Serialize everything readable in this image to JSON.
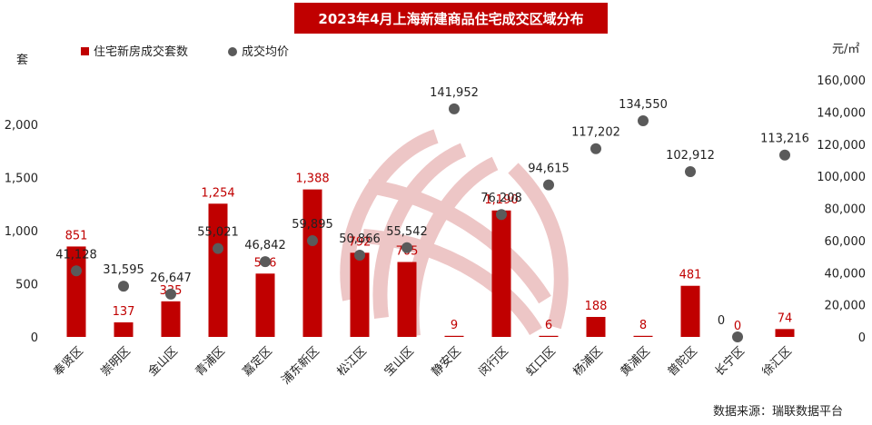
{
  "title": "2023年4月上海新建商品住宅成交区域分布",
  "source": "数据来源：瑞联数据平台",
  "colors": {
    "bar": "#c00000",
    "dot": "#5a5a5a",
    "title_bg": "#c00000",
    "watermark": "#e8b3b3"
  },
  "chart_data": {
    "type": "bar",
    "categories": [
      "奉贤区",
      "崇明区",
      "金山区",
      "青浦区",
      "嘉定区",
      "浦东新区",
      "松江区",
      "宝山区",
      "静安区",
      "闵行区",
      "虹口区",
      "杨浦区",
      "黄浦区",
      "普陀区",
      "长宁区",
      "徐汇区"
    ],
    "series": [
      {
        "name": "住宅新房成交套数",
        "type": "bar",
        "axis": "left",
        "values": [
          851,
          137,
          335,
          1254,
          596,
          1388,
          792,
          705,
          9,
          1190,
          6,
          188,
          8,
          481,
          0,
          74
        ],
        "labels": [
          "851",
          "137",
          "335",
          "1,254",
          "596",
          "1,388",
          "792",
          "705",
          "9",
          "1,190",
          "6",
          "188",
          "8",
          "481",
          "0",
          "74"
        ]
      },
      {
        "name": "成交均价",
        "type": "scatter",
        "axis": "right",
        "values": [
          41128,
          31595,
          26647,
          55021,
          46842,
          59895,
          50866,
          55542,
          141952,
          76208,
          94615,
          117202,
          134550,
          102912,
          0,
          113216
        ],
        "labels": [
          "41,128",
          "31,595",
          "26,647",
          "55,021",
          "46,842",
          "59,895",
          "50,866",
          "55,542",
          "141,952",
          "76,208",
          "94,615",
          "117,202",
          "134,550",
          "102,912",
          "0",
          "113,216"
        ]
      }
    ],
    "y_left": {
      "label": "套",
      "min": 0,
      "max": 2000,
      "ticks": [
        "0",
        "500",
        "1,000",
        "1,500",
        "2,000"
      ],
      "tick_values": [
        0,
        500,
        1000,
        1500,
        2000
      ]
    },
    "y_right": {
      "label": "元/㎡",
      "min": 0,
      "max": 160000,
      "ticks": [
        "0",
        "20,000",
        "40,000",
        "60,000",
        "80,000",
        "100,000",
        "120,000",
        "140,000",
        "160,000"
      ],
      "tick_values": [
        0,
        20000,
        40000,
        60000,
        80000,
        100000,
        120000,
        140000,
        160000
      ]
    },
    "legend": "top-left",
    "grid": false
  }
}
